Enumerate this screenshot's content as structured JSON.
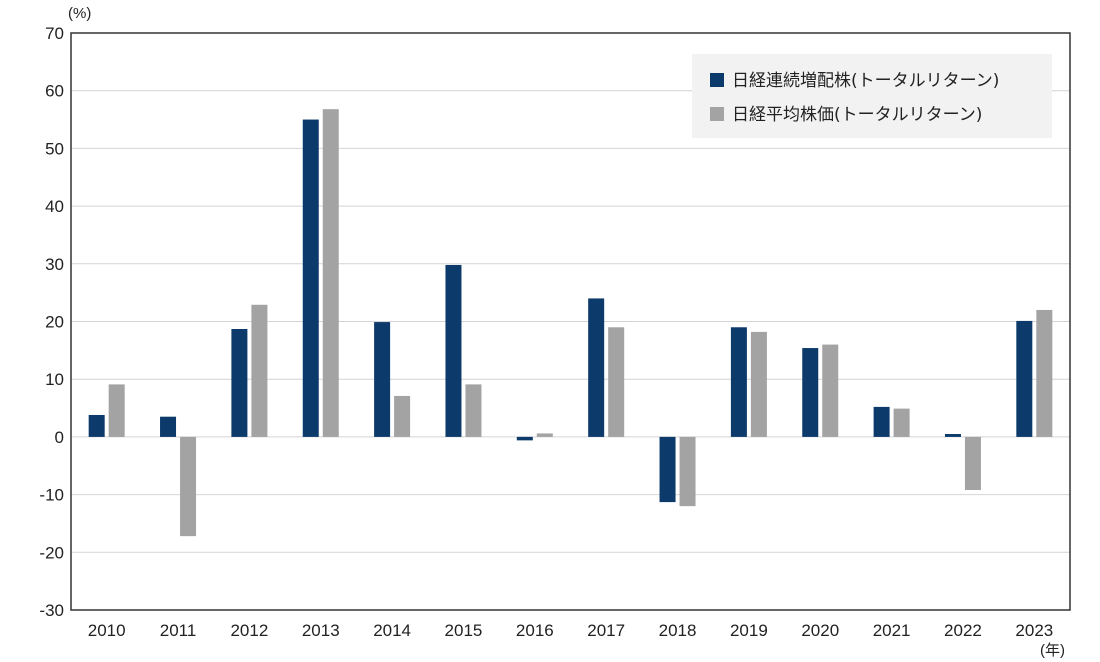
{
  "chart_data": {
    "type": "bar",
    "y_unit_label": "(%)",
    "x_unit_label": "(年)",
    "categories": [
      "2010",
      "2011",
      "2012",
      "2013",
      "2014",
      "2015",
      "2016",
      "2017",
      "2018",
      "2019",
      "2020",
      "2021",
      "2022",
      "2023"
    ],
    "series": [
      {
        "name": "日経連続増配株(トータルリターン)",
        "color": "#0b3a6b",
        "values": [
          3.8,
          3.5,
          18.7,
          55.0,
          19.9,
          29.8,
          -0.6,
          24.0,
          -11.3,
          19.0,
          15.4,
          5.2,
          0.5,
          20.1
        ]
      },
      {
        "name": "日経平均株価(トータルリターン)",
        "color": "#a3a3a3",
        "values": [
          9.1,
          -17.2,
          22.9,
          56.8,
          7.1,
          9.1,
          0.6,
          19.0,
          -12.0,
          18.2,
          16.0,
          4.9,
          -9.2,
          22.0
        ]
      }
    ],
    "ylim": [
      -30,
      70
    ],
    "yticks": [
      -30,
      -20,
      -10,
      0,
      10,
      20,
      30,
      40,
      50,
      60,
      70
    ],
    "grid": true,
    "legend_position": "top-right"
  }
}
